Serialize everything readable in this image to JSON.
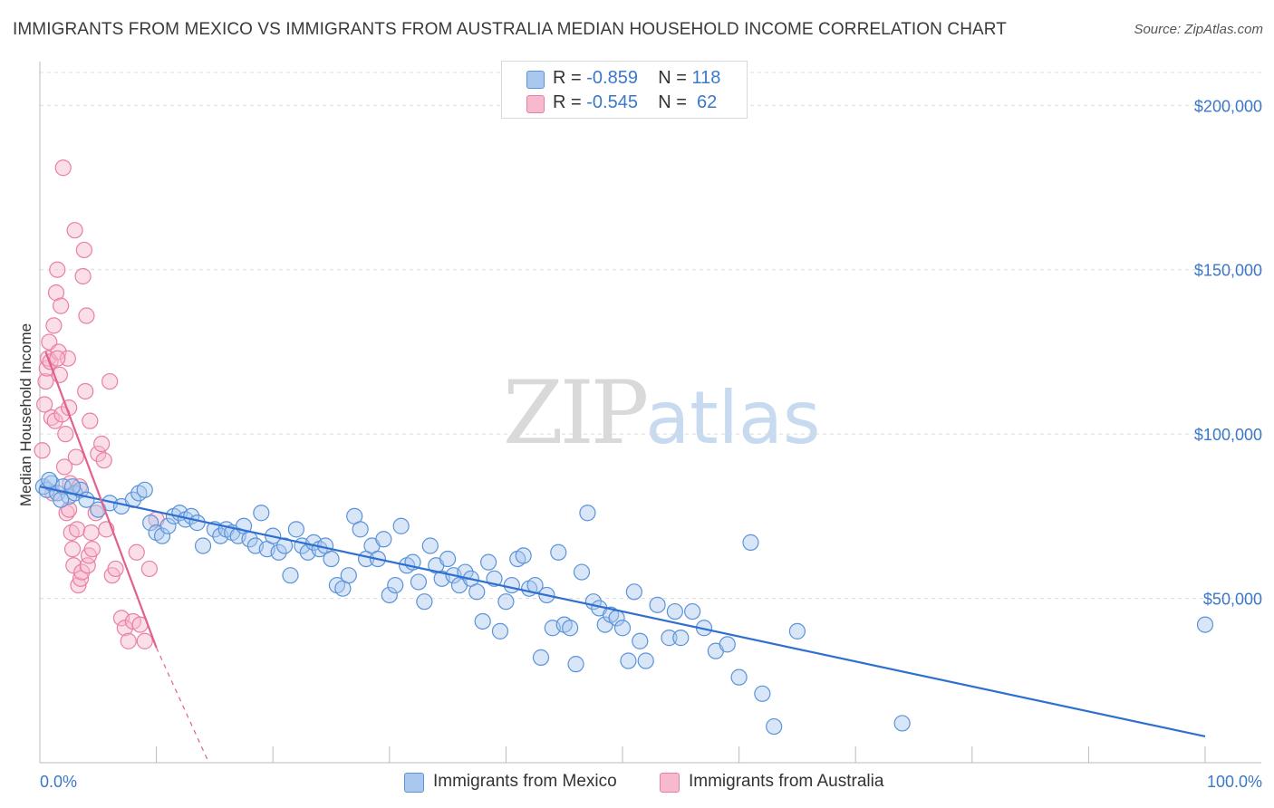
{
  "header": {
    "title": "IMMIGRANTS FROM MEXICO VS IMMIGRANTS FROM AUSTRALIA MEDIAN HOUSEHOLD INCOME CORRELATION CHART",
    "source": "Source: ZipAtlas.com"
  },
  "watermark": {
    "zip": "ZIP",
    "atlas": "atlas"
  },
  "legend": {
    "rows": [
      {
        "r_label": "R =",
        "r_value": "-0.859",
        "n_label": "N =",
        "n_value": "118"
      },
      {
        "r_label": "R =",
        "r_value": "-0.545",
        "n_label": "N =",
        "n_value": " 62"
      }
    ]
  },
  "bottom_legend": {
    "mexico": "Immigrants from Mexico",
    "australia": "Immigrants from Australia"
  },
  "colors": {
    "mexico_fill": "#a9c8f0",
    "mexico_stroke": "#5b93d8",
    "mexico_line": "#2f6fd0",
    "australia_fill": "#f7b9cd",
    "australia_stroke": "#e97fa3",
    "australia_line": "#e0608e",
    "tick_text": "#3b78c8",
    "grid": "#dcdcdc"
  },
  "chart_data": {
    "type": "scatter",
    "title": "IMMIGRANTS FROM MEXICO VS IMMIGRANTS FROM AUSTRALIA MEDIAN HOUSEHOLD INCOME CORRELATION CHART",
    "xlabel": "",
    "ylabel": "Median Household Income",
    "xlim": [
      0,
      100
    ],
    "ylim": [
      0,
      210000
    ],
    "x_tick_labels": [
      "0.0%",
      "100.0%"
    ],
    "y_ticks": [
      50000,
      100000,
      150000,
      200000
    ],
    "y_tick_labels": [
      "$50,000",
      "$100,000",
      "$150,000",
      "$200,000"
    ],
    "grid": true,
    "legend_position": "top-center",
    "series": [
      {
        "name": "Immigrants from Mexico",
        "r": -0.859,
        "n": 118,
        "trend": {
          "x": [
            0,
            100
          ],
          "y": [
            84000,
            8000
          ]
        },
        "points": [
          [
            0.3,
            84000
          ],
          [
            0.6,
            83000
          ],
          [
            1.0,
            85000
          ],
          [
            1.5,
            82000
          ],
          [
            2.0,
            84000
          ],
          [
            2.5,
            81000
          ],
          [
            3.0,
            82000
          ],
          [
            3.5,
            83000
          ],
          [
            4.0,
            80000
          ],
          [
            5.0,
            77000
          ],
          [
            6.0,
            79000
          ],
          [
            7.0,
            78000
          ],
          [
            8.0,
            80000
          ],
          [
            8.5,
            82000
          ],
          [
            9.0,
            83000
          ],
          [
            9.5,
            73000
          ],
          [
            10.0,
            70000
          ],
          [
            10.5,
            69000
          ],
          [
            11.0,
            72000
          ],
          [
            11.5,
            75000
          ],
          [
            12.0,
            76000
          ],
          [
            12.5,
            74000
          ],
          [
            13.0,
            75000
          ],
          [
            13.5,
            73000
          ],
          [
            14.0,
            66000
          ],
          [
            15.0,
            71000
          ],
          [
            15.5,
            69000
          ],
          [
            16.0,
            71000
          ],
          [
            16.5,
            70000
          ],
          [
            17.0,
            69000
          ],
          [
            17.5,
            72000
          ],
          [
            18.0,
            68000
          ],
          [
            18.5,
            66000
          ],
          [
            19.0,
            76000
          ],
          [
            19.5,
            65000
          ],
          [
            20.0,
            69000
          ],
          [
            20.5,
            64000
          ],
          [
            21.0,
            66000
          ],
          [
            21.5,
            57000
          ],
          [
            22.0,
            71000
          ],
          [
            22.5,
            66000
          ],
          [
            23.0,
            64000
          ],
          [
            23.5,
            67000
          ],
          [
            24.0,
            65000
          ],
          [
            24.5,
            66000
          ],
          [
            25.0,
            62000
          ],
          [
            25.5,
            54000
          ],
          [
            26.0,
            53000
          ],
          [
            26.5,
            57000
          ],
          [
            27.0,
            75000
          ],
          [
            27.5,
            71000
          ],
          [
            28.0,
            62000
          ],
          [
            28.5,
            66000
          ],
          [
            29.0,
            62000
          ],
          [
            29.5,
            68000
          ],
          [
            30.0,
            51000
          ],
          [
            30.5,
            54000
          ],
          [
            31.0,
            72000
          ],
          [
            31.5,
            60000
          ],
          [
            32.0,
            61000
          ],
          [
            32.5,
            55000
          ],
          [
            33.0,
            49000
          ],
          [
            33.5,
            66000
          ],
          [
            34.0,
            60000
          ],
          [
            34.5,
            56000
          ],
          [
            35.0,
            62000
          ],
          [
            35.5,
            57000
          ],
          [
            36.0,
            54000
          ],
          [
            36.5,
            58000
          ],
          [
            37.0,
            56000
          ],
          [
            37.5,
            52000
          ],
          [
            38.0,
            43000
          ],
          [
            38.5,
            61000
          ],
          [
            39.0,
            56000
          ],
          [
            39.5,
            40000
          ],
          [
            40.0,
            49000
          ],
          [
            40.5,
            54000
          ],
          [
            41.0,
            62000
          ],
          [
            41.5,
            63000
          ],
          [
            42.0,
            53000
          ],
          [
            42.5,
            54000
          ],
          [
            43.0,
            32000
          ],
          [
            43.5,
            51000
          ],
          [
            44.0,
            41000
          ],
          [
            44.5,
            64000
          ],
          [
            45.0,
            42000
          ],
          [
            45.5,
            41000
          ],
          [
            46.0,
            30000
          ],
          [
            46.5,
            58000
          ],
          [
            47.0,
            76000
          ],
          [
            47.5,
            49000
          ],
          [
            48.0,
            47000
          ],
          [
            48.5,
            42000
          ],
          [
            49.0,
            45000
          ],
          [
            49.5,
            44000
          ],
          [
            50.0,
            41000
          ],
          [
            50.5,
            31000
          ],
          [
            51.0,
            52000
          ],
          [
            51.5,
            37000
          ],
          [
            52.0,
            31000
          ],
          [
            53.0,
            48000
          ],
          [
            54.0,
            38000
          ],
          [
            54.5,
            46000
          ],
          [
            55.0,
            38000
          ],
          [
            56.0,
            46000
          ],
          [
            57.0,
            41000
          ],
          [
            58.0,
            34000
          ],
          [
            59.0,
            36000
          ],
          [
            60.0,
            26000
          ],
          [
            61.0,
            67000
          ],
          [
            62.0,
            21000
          ],
          [
            63.0,
            11000
          ],
          [
            65.0,
            40000
          ],
          [
            74.0,
            12000
          ],
          [
            100.0,
            42000
          ],
          [
            0.8,
            86000
          ],
          [
            1.8,
            80000
          ],
          [
            2.8,
            84000
          ]
        ]
      },
      {
        "name": "Immigrants from Australia",
        "r": -0.545,
        "n": 62,
        "trend": {
          "x": [
            0.5,
            10.0
          ],
          "y": [
            125000,
            35000
          ]
        },
        "trend_extension": {
          "x": [
            10.0,
            14.5
          ],
          "y": [
            35000,
            0
          ]
        },
        "points": [
          [
            0.2,
            95000
          ],
          [
            0.4,
            109000
          ],
          [
            0.5,
            116000
          ],
          [
            0.6,
            120000
          ],
          [
            0.7,
            123000
          ],
          [
            0.8,
            128000
          ],
          [
            0.9,
            122000
          ],
          [
            1.0,
            105000
          ],
          [
            1.1,
            82000
          ],
          [
            1.2,
            133000
          ],
          [
            1.3,
            104000
          ],
          [
            1.4,
            143000
          ],
          [
            1.5,
            150000
          ],
          [
            1.6,
            125000
          ],
          [
            1.7,
            118000
          ],
          [
            1.8,
            139000
          ],
          [
            1.9,
            106000
          ],
          [
            2.0,
            181000
          ],
          [
            2.1,
            90000
          ],
          [
            2.2,
            100000
          ],
          [
            2.3,
            76000
          ],
          [
            2.4,
            123000
          ],
          [
            2.5,
            108000
          ],
          [
            2.6,
            85000
          ],
          [
            2.7,
            70000
          ],
          [
            2.8,
            65000
          ],
          [
            2.9,
            60000
          ],
          [
            3.0,
            162000
          ],
          [
            3.1,
            93000
          ],
          [
            3.2,
            71000
          ],
          [
            3.3,
            54000
          ],
          [
            3.4,
            84000
          ],
          [
            3.5,
            56000
          ],
          [
            3.6,
            58000
          ],
          [
            3.7,
            148000
          ],
          [
            3.8,
            156000
          ],
          [
            3.9,
            113000
          ],
          [
            4.0,
            136000
          ],
          [
            4.1,
            60000
          ],
          [
            4.2,
            63000
          ],
          [
            4.3,
            104000
          ],
          [
            4.4,
            70000
          ],
          [
            4.5,
            65000
          ],
          [
            5.0,
            94000
          ],
          [
            5.3,
            97000
          ],
          [
            5.5,
            92000
          ],
          [
            5.7,
            71000
          ],
          [
            6.0,
            116000
          ],
          [
            6.2,
            57000
          ],
          [
            6.5,
            59000
          ],
          [
            7.0,
            44000
          ],
          [
            7.3,
            41000
          ],
          [
            7.6,
            37000
          ],
          [
            8.0,
            43000
          ],
          [
            8.3,
            64000
          ],
          [
            8.6,
            42000
          ],
          [
            9.0,
            37000
          ],
          [
            9.4,
            59000
          ],
          [
            10.0,
            74000
          ],
          [
            1.5,
            123000
          ],
          [
            2.5,
            77000
          ],
          [
            4.8,
            76000
          ]
        ]
      }
    ]
  }
}
